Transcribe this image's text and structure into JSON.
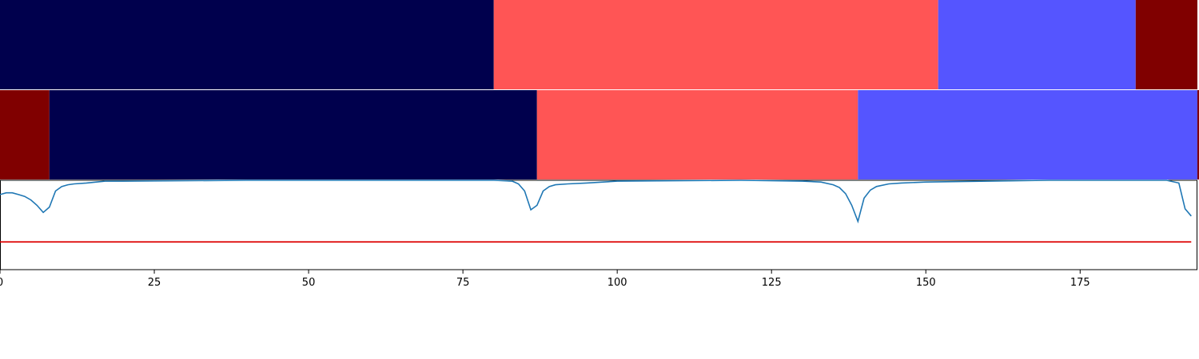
{
  "chart_data": {
    "type": "segmentation-timeline",
    "xlim": [
      0,
      194
    ],
    "x_ticks": [
      0,
      25,
      50,
      75,
      100,
      125,
      150,
      175
    ],
    "x_tick_labels": [
      "0",
      "25",
      "50",
      "75",
      "100",
      "125",
      "150",
      "175"
    ],
    "colors": {
      "class_0": "#00004d",
      "class_1": "#ff5555",
      "class_2": "#5555ff",
      "class_3": "#800000",
      "line": "#1f77b4",
      "threshold": "#dd0000"
    },
    "rows": [
      {
        "segments": [
          {
            "start": 0,
            "end": 80,
            "color": "#00004d"
          },
          {
            "start": 80,
            "end": 152,
            "color": "#ff5555"
          },
          {
            "start": 152,
            "end": 184,
            "color": "#5555ff"
          },
          {
            "start": 184,
            "end": 194,
            "color": "#800000"
          }
        ]
      },
      {
        "segments": [
          {
            "start": 0,
            "end": 8,
            "color": "#800000"
          },
          {
            "start": 8,
            "end": 87,
            "color": "#00004d"
          },
          {
            "start": 87,
            "end": 139,
            "color": "#ff5555"
          },
          {
            "start": 139,
            "end": 194,
            "color": "#5555ff"
          },
          {
            "start": 194,
            "end": 195,
            "color": "#800000"
          }
        ]
      }
    ],
    "line_ylim": [
      0,
      1
    ],
    "threshold_y": 0.31,
    "line_points": [
      [
        0,
        0.84
      ],
      [
        1,
        0.86
      ],
      [
        2,
        0.86
      ],
      [
        3,
        0.84
      ],
      [
        4,
        0.82
      ],
      [
        5,
        0.78
      ],
      [
        6,
        0.72
      ],
      [
        7,
        0.64
      ],
      [
        8,
        0.7
      ],
      [
        9,
        0.88
      ],
      [
        10,
        0.93
      ],
      [
        11,
        0.95
      ],
      [
        12,
        0.96
      ],
      [
        14,
        0.97
      ],
      [
        17,
        0.99
      ],
      [
        20,
        0.99
      ],
      [
        40,
        1.0
      ],
      [
        60,
        1.0
      ],
      [
        80,
        1.0
      ],
      [
        83,
        0.99
      ],
      [
        84,
        0.96
      ],
      [
        85,
        0.88
      ],
      [
        86,
        0.67
      ],
      [
        87,
        0.72
      ],
      [
        88,
        0.88
      ],
      [
        89,
        0.93
      ],
      [
        90,
        0.95
      ],
      [
        92,
        0.96
      ],
      [
        95,
        0.97
      ],
      [
        100,
        0.99
      ],
      [
        120,
        1.0
      ],
      [
        130,
        0.99
      ],
      [
        133,
        0.98
      ],
      [
        135,
        0.95
      ],
      [
        136,
        0.92
      ],
      [
        137,
        0.85
      ],
      [
        138,
        0.72
      ],
      [
        139,
        0.54
      ],
      [
        140,
        0.8
      ],
      [
        141,
        0.89
      ],
      [
        142,
        0.93
      ],
      [
        144,
        0.96
      ],
      [
        146,
        0.97
      ],
      [
        150,
        0.98
      ],
      [
        160,
        0.99
      ],
      [
        170,
        1.0
      ],
      [
        185,
        1.0
      ],
      [
        189,
        1.0
      ],
      [
        191,
        0.97
      ],
      [
        192,
        0.68
      ],
      [
        193,
        0.6
      ]
    ]
  }
}
